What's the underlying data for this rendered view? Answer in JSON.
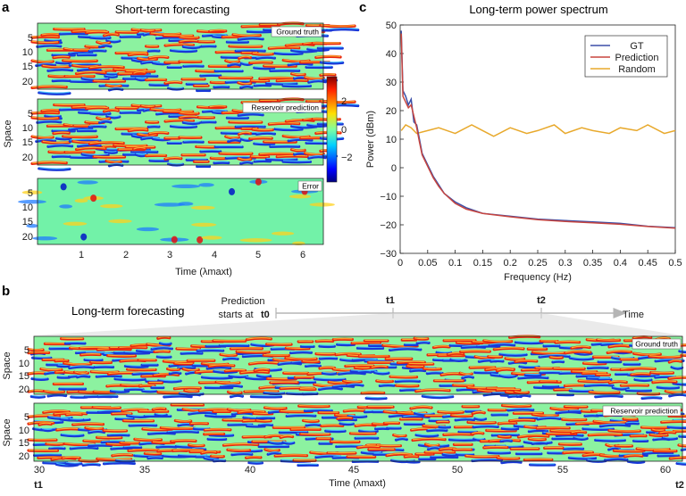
{
  "panel_a": {
    "letter": "a",
    "title": "Short-term forecasting",
    "ylabel": "Space",
    "xlabel": "Time (λmaxt)",
    "yticks": [
      "5",
      "10",
      "15",
      "20"
    ],
    "xticks": [
      "1",
      "2",
      "3",
      "4",
      "5",
      "6"
    ],
    "heatmaps": [
      {
        "label": "Ground truth"
      },
      {
        "label": "Reservoir prediction"
      },
      {
        "label": "Error"
      }
    ],
    "colorbar_ticks": [
      "2",
      "0",
      "−2"
    ]
  },
  "panel_b": {
    "letter": "b",
    "title": "Long-term forecasting",
    "timeline": {
      "start_label_line1": "Prediction",
      "start_label_line2": "starts at",
      "t0": "t0",
      "t1": "t1",
      "t2": "t2",
      "axis_label": "Time"
    },
    "ylabel": "Space",
    "yticks": [
      "5",
      "10",
      "15",
      "20"
    ],
    "heatmaps": [
      {
        "label": "Ground truth"
      },
      {
        "label": "Reservoir prediction"
      }
    ],
    "xticks": [
      "30",
      "35",
      "40",
      "45",
      "50",
      "55",
      "60"
    ],
    "xlabel": "Time (λmaxt)",
    "x_start": "t1",
    "x_end": "t2"
  },
  "chart_data": [
    {
      "panel": "c",
      "type": "line",
      "title": "Long-term power spectrum",
      "xlabel": "Frequency (Hz)",
      "ylabel": "Power (dBm)",
      "xlim": [
        0,
        0.5
      ],
      "ylim": [
        -30,
        50
      ],
      "xticks": [
        "0",
        "0.05",
        "0.1",
        "0.15",
        "0.2",
        "0.25",
        "0.3",
        "0.35",
        "0.4",
        "0.45",
        "0.5"
      ],
      "yticks": [
        "−30",
        "−20",
        "−10",
        "0",
        "10",
        "20",
        "30",
        "40",
        "50"
      ],
      "legend_position": "top-right",
      "series": [
        {
          "name": "GT",
          "color": "#3b4fa8",
          "x": [
            0.002,
            0.005,
            0.01,
            0.015,
            0.02,
            0.025,
            0.03,
            0.035,
            0.04,
            0.05,
            0.06,
            0.07,
            0.08,
            0.1,
            0.12,
            0.15,
            0.2,
            0.25,
            0.3,
            0.35,
            0.4,
            0.45,
            0.5
          ],
          "y": [
            48,
            27,
            25,
            22,
            24,
            16,
            15,
            10,
            5,
            1,
            -3,
            -6,
            -9,
            -12,
            -14,
            -16,
            -17,
            -18,
            -18.5,
            -19,
            -19.5,
            -20.5,
            -21
          ]
        },
        {
          "name": "Prediction",
          "color": "#c8453f",
          "x": [
            0.002,
            0.005,
            0.01,
            0.015,
            0.02,
            0.025,
            0.03,
            0.035,
            0.04,
            0.05,
            0.06,
            0.07,
            0.08,
            0.1,
            0.12,
            0.15,
            0.2,
            0.25,
            0.3,
            0.35,
            0.4,
            0.45,
            0.5
          ],
          "y": [
            47,
            25,
            23,
            21,
            22,
            18,
            14,
            9,
            4.5,
            0.5,
            -3.5,
            -6.5,
            -9,
            -12.5,
            -14.5,
            -16,
            -17.2,
            -18.2,
            -18.8,
            -19.3,
            -19.8,
            -20.6,
            -21.2
          ]
        },
        {
          "name": "Random",
          "color": "#e8a92c",
          "x": [
            0.002,
            0.01,
            0.02,
            0.03,
            0.05,
            0.07,
            0.1,
            0.13,
            0.15,
            0.17,
            0.2,
            0.23,
            0.25,
            0.28,
            0.3,
            0.33,
            0.35,
            0.38,
            0.4,
            0.43,
            0.45,
            0.48,
            0.5
          ],
          "y": [
            13,
            15,
            14,
            12,
            13,
            14,
            12,
            15,
            13,
            11,
            14,
            12,
            13,
            15,
            12,
            14,
            13,
            12,
            14,
            13,
            15,
            12,
            13
          ]
        }
      ]
    }
  ]
}
